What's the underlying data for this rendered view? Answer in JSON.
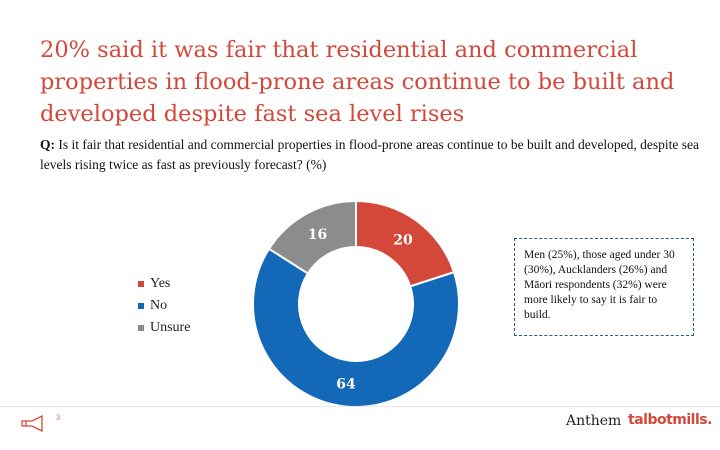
{
  "slide": {
    "title": "20% said it was fair that residential and commercial properties in flood-prone areas continue to be built and developed despite fast sea level rises",
    "question_prefix": "Q:",
    "question_text": " Is it fair that residential and commercial properties in flood-prone areas continue to be built and developed, despite sea levels rising twice as fast as previously forecast? (%)",
    "callout": "Men (25%), those aged under 30 (30%), Aucklanders (26%) and Māori respondents (32%) were more likely to say it is fair to build.",
    "page_number": "3",
    "logo_anthem": "Anthem",
    "logo_talbot": "talbotmills."
  },
  "colors": {
    "accent": "#d4483a",
    "yes": "#d4483a",
    "no": "#1468b8",
    "unsure": "#8c8c8c",
    "callout_border": "#2a5d86"
  },
  "chart_data": {
    "type": "pie",
    "donut": true,
    "categories": [
      "Yes",
      "No",
      "Unsure"
    ],
    "values": [
      20,
      64,
      16
    ],
    "colors": [
      "#d4483a",
      "#1468b8",
      "#8c8c8c"
    ],
    "legend": "left",
    "title": ""
  }
}
